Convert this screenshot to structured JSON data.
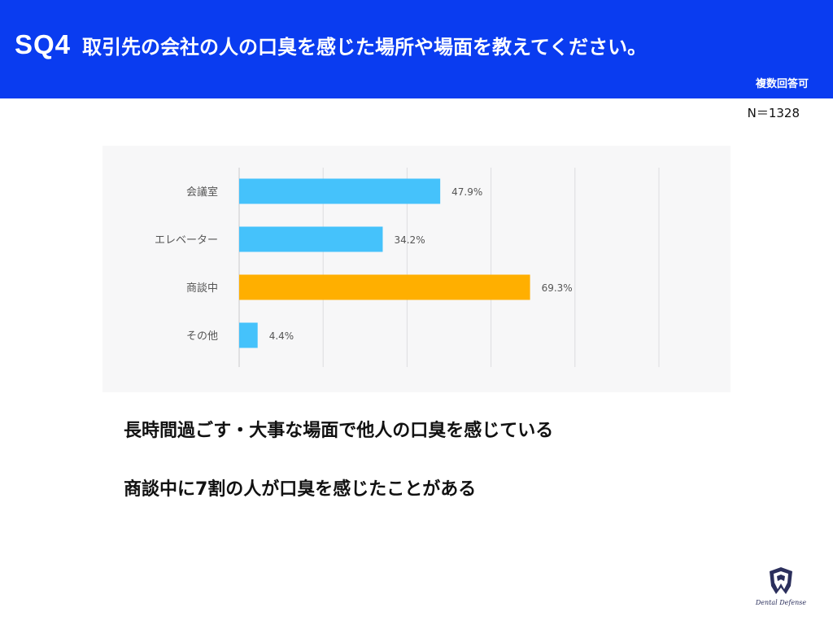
{
  "header": {
    "question_number": "SQ4",
    "question_text": "取引先の会社の人の口臭を感じた場所や場面を教えてください。",
    "answer_type": "複数回答可",
    "sample_size": "N＝1328"
  },
  "chart_data": {
    "type": "bar",
    "orientation": "horizontal",
    "categories": [
      "会議室",
      "エレベーター",
      "商談中",
      "その他"
    ],
    "values": [
      47.9,
      34.2,
      69.3,
      4.4
    ],
    "value_labels": [
      "47.9%",
      "34.2%",
      "69.3%",
      "4.4%"
    ],
    "bar_colors": [
      "#45c2fb",
      "#45c2fb",
      "#ffaf00",
      "#45c2fb"
    ],
    "highlight_color": "#ffaf00",
    "default_color": "#45c2fb",
    "xlim": [
      0,
      100
    ],
    "grid": true,
    "legend": "none"
  },
  "takeaways": [
    "長時間過ごす・大事な場面で他人の口臭を感じている",
    "商談中に7割の人が口臭を感じたことがある"
  ],
  "logo": {
    "icon": "tooth-icon",
    "text": "Dental Defense"
  },
  "colors": {
    "header_bg": "#0a3cf0",
    "panel_bg": "#f7f7f8"
  }
}
